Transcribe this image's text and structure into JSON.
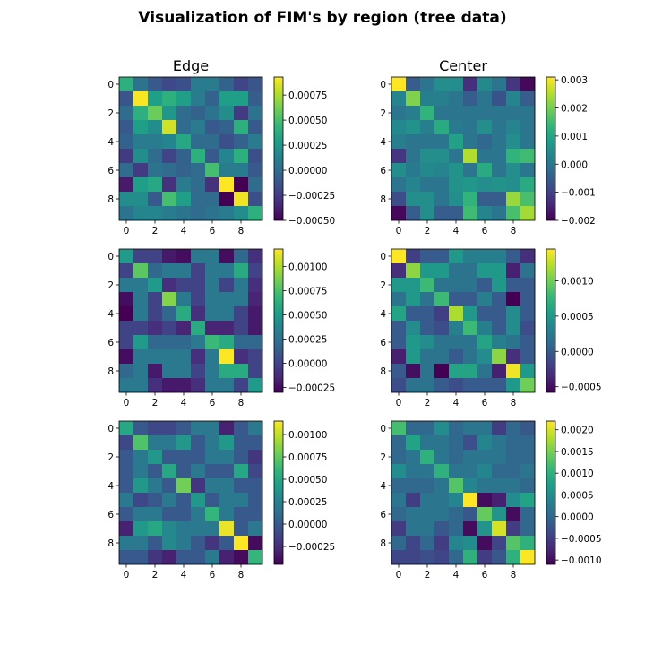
{
  "figure": {
    "title": "Visualization of FIM's by region (tree data)",
    "column_titles": [
      "Edge",
      "Center"
    ]
  },
  "colormap": {
    "name": "viridis",
    "stops": [
      "#440154",
      "#482878",
      "#3e4989",
      "#31688e",
      "#26828e",
      "#1f9e89",
      "#35b779",
      "#6ece58",
      "#b5de2b",
      "#fde725"
    ]
  },
  "chart_data": [
    {
      "type": "heatmap",
      "title": "Edge",
      "panel": "row-1-left",
      "x_ticks": [
        "0",
        "2",
        "4",
        "6",
        "8"
      ],
      "y_ticks": [
        "0",
        "2",
        "4",
        "6",
        "8"
      ],
      "vmin": -0.0005,
      "vmax": 0.00093,
      "colorbar_ticks": [
        {
          "value": 0.00075,
          "label": "0.00075"
        },
        {
          "value": 0.0005,
          "label": "0.00050"
        },
        {
          "value": 0.00025,
          "label": "0.00025"
        },
        {
          "value": 0.0,
          "label": "0.00000"
        },
        {
          "value": -0.00025,
          "label": "−0.00025"
        },
        {
          "value": -0.0005,
          "label": "−0.00050"
        }
      ],
      "values": [
        [
          0.0004,
          5e-05,
          -0.0001,
          -0.00018,
          -0.00015,
          0.0001,
          0.0001,
          -5e-05,
          -0.0002,
          -0.00012
        ],
        [
          -0.00012,
          0.00092,
          0.0003,
          0.0004,
          0.0003,
          0.0001,
          -5e-05,
          0.0003,
          0.0003,
          -8e-05
        ],
        [
          0.0,
          0.0004,
          0.0006,
          0.00025,
          0.0,
          -5e-05,
          5e-05,
          0.0002,
          -0.00025,
          5e-05
        ],
        [
          -0.0001,
          0.0003,
          0.0002,
          0.00083,
          0.0,
          0.0001,
          -0.0001,
          -5e-05,
          0.0004,
          -0.0001
        ],
        [
          -5e-05,
          0.0001,
          0.0001,
          0.00015,
          0.00035,
          0.0,
          0.0,
          -0.00015,
          -5e-05,
          0.0001
        ],
        [
          -0.00025,
          0.0002,
          0.0,
          -0.0002,
          -5e-05,
          0.0004,
          -0.0001,
          0.00015,
          0.0004,
          -0.00015
        ],
        [
          0.0,
          -0.00025,
          5e-05,
          0.0,
          -5e-05,
          0.0,
          0.0005,
          0.0001,
          0.0001,
          -0.0001
        ],
        [
          -0.0004,
          0.0003,
          0.00035,
          -0.0003,
          0.0001,
          0.0,
          -0.0003,
          0.00093,
          -0.0005,
          0.0
        ],
        [
          0.0002,
          0.0002,
          -0.0001,
          0.0005,
          0.0003,
          0.0,
          0.0,
          -0.0005,
          0.0009,
          -0.00015
        ],
        [
          5e-05,
          0.00015,
          0.00015,
          0.0001,
          5e-05,
          0.0,
          5e-05,
          0.0001,
          0.0002,
          0.0004
        ]
      ]
    },
    {
      "type": "heatmap",
      "title": "Center",
      "panel": "row-1-right",
      "x_ticks": [
        "0",
        "2",
        "4",
        "6",
        "8"
      ],
      "y_ticks": [
        "0",
        "2",
        "4",
        "6",
        "8"
      ],
      "vmin": -0.002,
      "vmax": 0.0031,
      "colorbar_ticks": [
        {
          "value": 0.003,
          "label": "0.003"
        },
        {
          "value": 0.002,
          "label": "0.002"
        },
        {
          "value": 0.001,
          "label": "0.001"
        },
        {
          "value": 0.0,
          "label": "0.000"
        },
        {
          "value": -0.001,
          "label": "−0.001"
        },
        {
          "value": -0.002,
          "label": "−0.002"
        }
      ],
      "values": [
        [
          0.0031,
          -0.0005,
          0.0,
          0.0005,
          0.0005,
          -0.0013,
          0.0004,
          0.0,
          -0.0012,
          -0.0019
        ],
        [
          0.0003,
          0.0021,
          0.0002,
          0.0002,
          0.0,
          -0.0005,
          0.0,
          -0.0007,
          0.0003,
          -0.0005
        ],
        [
          0.0,
          0.0002,
          0.0013,
          0.0,
          0.0,
          0.0,
          0.0,
          0.0,
          0.0,
          0.0
        ],
        [
          0.0004,
          0.0006,
          0.0002,
          0.0011,
          0.0001,
          0.0,
          0.0005,
          0.0,
          0.0003,
          0.0
        ],
        [
          0.0002,
          0.0,
          0.0,
          0.0,
          0.0009,
          0.0,
          -0.0003,
          0.0,
          0.0005,
          0.0
        ],
        [
          -0.0012,
          0.0,
          0.0005,
          0.0005,
          0.0,
          0.0025,
          0.0,
          0.0,
          0.0013,
          0.0015
        ],
        [
          0.0005,
          0.0001,
          0.0004,
          0.0003,
          0.0006,
          0.0,
          0.0011,
          0.0,
          0.0005,
          0.0
        ],
        [
          0.0,
          0.0003,
          0.0,
          0.0,
          0.0006,
          0.0007,
          0.0005,
          0.0006,
          0.0005,
          0.0011
        ],
        [
          -0.0008,
          0.0005,
          0.0005,
          0.0,
          0.0005,
          0.0013,
          -0.0005,
          -0.0005,
          0.0023,
          0.0016
        ],
        [
          -0.0019,
          -0.0005,
          0.0005,
          -0.0005,
          -0.0005,
          0.0015,
          0.0003,
          0.0,
          0.0016,
          0.0024
        ]
      ]
    },
    {
      "type": "heatmap",
      "title": "",
      "panel": "row-2-left",
      "x_ticks": [
        "0",
        "2",
        "4",
        "6",
        "8"
      ],
      "y_ticks": [
        "0",
        "2",
        "4",
        "6",
        "8"
      ],
      "vmin": -0.0003,
      "vmax": 0.00118,
      "colorbar_ticks": [
        {
          "value": 0.001,
          "label": "0.00100"
        },
        {
          "value": 0.00075,
          "label": "0.00075"
        },
        {
          "value": 0.0005,
          "label": "0.00050"
        },
        {
          "value": 0.00025,
          "label": "0.00025"
        },
        {
          "value": 0.0,
          "label": "0.00000"
        },
        {
          "value": -0.00025,
          "label": "−0.00025"
        }
      ],
      "values": [
        [
          0.0005,
          0.0,
          0.0,
          -0.0002,
          -0.00025,
          0.0003,
          0.0003,
          -0.00025,
          0.0002,
          -0.0001
        ],
        [
          0.0,
          0.0008,
          0.0002,
          0.0003,
          0.0003,
          0.0,
          0.0003,
          0.0003,
          0.0006,
          0.0
        ],
        [
          0.0003,
          0.0003,
          0.0005,
          -0.0001,
          0.0,
          0.0,
          0.0003,
          0.0,
          0.0003,
          -0.0001
        ],
        [
          -0.00025,
          0.0003,
          0.0,
          0.0009,
          0.0003,
          0.0,
          0.0003,
          0.0003,
          0.0003,
          -0.00015
        ],
        [
          -0.0003,
          0.0003,
          0.0,
          0.0002,
          0.0006,
          -0.0001,
          0.0003,
          0.0003,
          0.0,
          -0.0002
        ],
        [
          0.0,
          0.0,
          -0.0001,
          0.0,
          -0.00015,
          0.0006,
          -0.00015,
          -0.00015,
          0.0,
          -0.0002
        ],
        [
          0.0,
          0.0005,
          0.0002,
          0.0002,
          0.0002,
          0.0003,
          0.0007,
          0.0006,
          0.0002,
          0.0002
        ],
        [
          -0.00025,
          0.0003,
          0.0003,
          0.0003,
          0.0003,
          -0.0001,
          0.0003,
          0.00118,
          -0.0001,
          0.0
        ],
        [
          0.0002,
          0.0003,
          -0.0002,
          0.0003,
          0.0003,
          0.0,
          0.0003,
          0.0006,
          0.0006,
          0.0
        ],
        [
          0.0003,
          0.0003,
          -0.0001,
          -0.0002,
          -0.0002,
          -0.0001,
          0.0003,
          0.0003,
          0.0,
          0.0005
        ]
      ]
    },
    {
      "type": "heatmap",
      "title": "",
      "panel": "row-2-right",
      "x_ticks": [
        "0",
        "2",
        "4",
        "6",
        "8"
      ],
      "y_ticks": [
        "0",
        "2",
        "4",
        "6",
        "8"
      ],
      "vmin": -0.00058,
      "vmax": 0.00145,
      "colorbar_ticks": [
        {
          "value": 0.001,
          "label": "0.0010"
        },
        {
          "value": 0.0005,
          "label": "0.0005"
        },
        {
          "value": 0.0,
          "label": "0.0000"
        },
        {
          "value": -0.0005,
          "label": "−0.0005"
        }
      ],
      "values": [
        [
          0.00145,
          -0.0002,
          0.0,
          0.0,
          0.0005,
          0.0003,
          0.0003,
          0.0003,
          0.0,
          -0.0003
        ],
        [
          -0.0003,
          0.0011,
          0.0005,
          0.0005,
          0.0002,
          0.0002,
          0.0005,
          0.0005,
          -0.0004,
          0.0002
        ],
        [
          0.0005,
          0.0005,
          0.0008,
          0.0002,
          0.0002,
          0.0002,
          0.0,
          0.0005,
          0.0,
          0.0
        ],
        [
          0.0002,
          0.0005,
          0.0002,
          0.0008,
          0.0,
          0.0,
          0.0003,
          0.0,
          -0.00058,
          0.0
        ],
        [
          0.0006,
          0.0,
          0.0,
          -0.0002,
          0.0012,
          0.0005,
          0.0,
          0.0,
          0.0004,
          0.0
        ],
        [
          0.0,
          0.0004,
          0.0,
          -0.0001,
          0.0003,
          0.0008,
          0.0003,
          0.0,
          0.0004,
          -0.0001
        ],
        [
          0.0,
          0.0005,
          0.0004,
          0.0002,
          0.0002,
          0.0002,
          0.0006,
          0.0003,
          0.0002,
          0.0
        ],
        [
          -0.0004,
          0.0005,
          0.0002,
          0.0002,
          0.0,
          0.0002,
          0.0004,
          0.0011,
          -0.0003,
          0.0
        ],
        [
          0.0,
          -0.0005,
          0.0002,
          -0.00058,
          0.0006,
          0.0006,
          0.0002,
          -0.0004,
          0.0014,
          0.0005
        ],
        [
          -0.0001,
          0.0002,
          0.0002,
          0.0,
          -0.0001,
          0.0,
          0.0,
          0.0,
          0.0005,
          0.001
        ]
      ]
    },
    {
      "type": "heatmap",
      "title": "",
      "panel": "row-3-left",
      "x_ticks": [
        "0",
        "2",
        "4",
        "6",
        "8"
      ],
      "y_ticks": [
        "0",
        "2",
        "4",
        "6",
        "8"
      ],
      "vmin": -0.00045,
      "vmax": 0.00115,
      "colorbar_ticks": [
        {
          "value": 0.001,
          "label": "0.00100"
        },
        {
          "value": 0.00075,
          "label": "0.00075"
        },
        {
          "value": 0.0005,
          "label": "0.00050"
        },
        {
          "value": 0.00025,
          "label": "0.00025"
        },
        {
          "value": 0.0,
          "label": "0.00000"
        },
        {
          "value": -0.00025,
          "label": "−0.00025"
        }
      ],
      "values": [
        [
          0.0005,
          0.0,
          -0.0001,
          -0.0001,
          0.0,
          0.0002,
          0.0002,
          -0.0003,
          0.0,
          0.0002
        ],
        [
          -0.0001,
          0.0007,
          0.0002,
          0.0002,
          0.0004,
          0.0,
          0.0002,
          0.0004,
          0.0,
          0.0
        ],
        [
          0.0,
          0.0002,
          0.0004,
          0.0,
          0.0,
          0.0,
          0.0002,
          0.0002,
          0.0,
          -0.0002
        ],
        [
          0.0,
          0.0002,
          0.0,
          0.0005,
          0.0,
          0.0002,
          0.0,
          0.0,
          0.0005,
          -0.0001
        ],
        [
          0.0,
          0.0004,
          0.0002,
          0.0,
          0.0008,
          -0.0002,
          0.0002,
          0.0002,
          0.0,
          0.0
        ],
        [
          0.0002,
          -0.0001,
          0.0,
          0.0002,
          0.0,
          0.0004,
          0.0,
          0.0002,
          0.0002,
          0.0
        ],
        [
          0.0,
          0.0002,
          0.0002,
          0.0,
          0.0,
          0.0002,
          0.0006,
          0.0002,
          0.0,
          0.0
        ],
        [
          -0.0003,
          0.0004,
          0.0005,
          0.0003,
          0.0002,
          0.0002,
          0.0002,
          0.0011,
          0.0,
          0.0002
        ],
        [
          0.0002,
          0.0002,
          0.0,
          0.0003,
          0.0002,
          0.0,
          -0.0002,
          0.0,
          0.00115,
          -0.0004
        ],
        [
          0.0,
          0.0,
          -0.0002,
          -0.0003,
          0.0,
          0.0,
          0.0002,
          -0.0003,
          -0.0004,
          0.0006
        ]
      ]
    },
    {
      "type": "heatmap",
      "title": "",
      "panel": "row-3-right",
      "x_ticks": [
        "0",
        "2",
        "4",
        "6",
        "8"
      ],
      "y_ticks": [
        "0",
        "2",
        "4",
        "6",
        "8"
      ],
      "vmin": -0.0011,
      "vmax": 0.0022,
      "colorbar_ticks": [
        {
          "value": 0.002,
          "label": "0.0020"
        },
        {
          "value": 0.0015,
          "label": "0.0015"
        },
        {
          "value": 0.001,
          "label": "0.0010"
        },
        {
          "value": 0.0005,
          "label": "0.0005"
        },
        {
          "value": 0.0,
          "label": "0.0000"
        },
        {
          "value": -0.0005,
          "label": "−0.0005"
        },
        {
          "value": -0.001,
          "label": "−0.0010"
        }
      ],
      "values": [
        [
          0.0012,
          0.0,
          0.0,
          0.0005,
          0.0,
          0.0002,
          0.0002,
          -0.0005,
          0.0,
          -0.0002
        ],
        [
          0.0,
          0.0008,
          0.0002,
          0.0002,
          0.0,
          -0.0003,
          0.0004,
          0.0002,
          0.0,
          0.0
        ],
        [
          0.0,
          0.0002,
          0.001,
          0.0002,
          0.0,
          0.0002,
          0.0002,
          0.0002,
          0.0,
          0.0
        ],
        [
          0.0005,
          0.0002,
          0.0002,
          0.001,
          0.0002,
          0.0002,
          0.0004,
          0.0,
          0.0,
          0.0002
        ],
        [
          0.0,
          0.0,
          0.0,
          0.0002,
          0.0013,
          0.0004,
          0.0002,
          0.0002,
          0.0002,
          0.0
        ],
        [
          0.0002,
          -0.0005,
          0.0002,
          0.0002,
          0.0004,
          0.0022,
          -0.001,
          -0.0008,
          0.0005,
          0.0008
        ],
        [
          0.0,
          0.0002,
          0.0002,
          0.0002,
          0.0,
          -0.0002,
          0.0014,
          0.0006,
          -0.001,
          0.0
        ],
        [
          -0.0005,
          0.0002,
          0.0002,
          -0.0002,
          0.0,
          -0.001,
          0.0006,
          0.002,
          -0.0005,
          0.0
        ],
        [
          0.0,
          -0.0004,
          0.0,
          -0.0005,
          0.0004,
          0.0005,
          -0.001,
          -0.0004,
          0.0013,
          0.001
        ],
        [
          -0.0004,
          -0.0004,
          -0.0003,
          -0.0004,
          0.0,
          0.001,
          -0.0005,
          -0.0002,
          0.001,
          0.0022
        ]
      ]
    }
  ]
}
